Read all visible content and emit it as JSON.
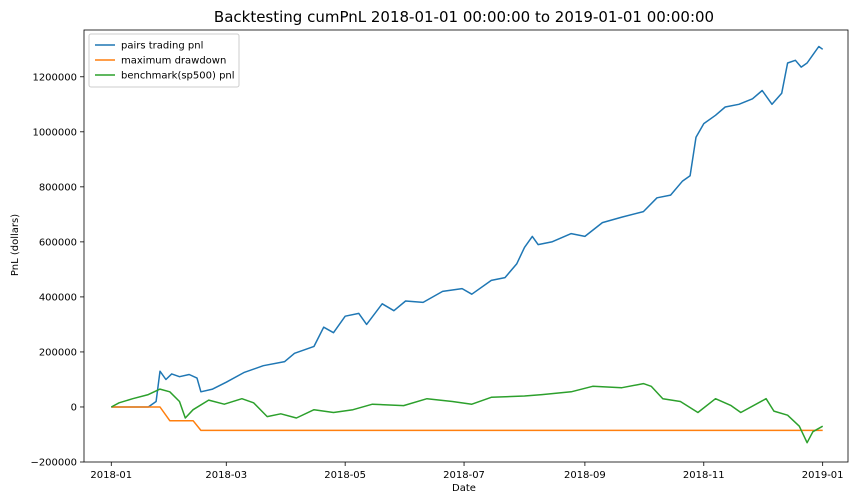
{
  "chart_data": {
    "type": "line",
    "title": "Backtesting cumPnL 2018-01-01 00:00:00 to 2019-01-01 00:00:00",
    "xlabel": "Date",
    "ylabel": "PnL (dollars)",
    "xlim": [
      "2017-12-18",
      "2019-01-14"
    ],
    "ylim": [
      -200000,
      1370000
    ],
    "grid": false,
    "legend_position": "top-left",
    "x_ticks": [
      {
        "value": "2018-01-01",
        "label": "2018-01"
      },
      {
        "value": "2018-03-01",
        "label": "2018-03"
      },
      {
        "value": "2018-05-01",
        "label": "2018-05"
      },
      {
        "value": "2018-07-01",
        "label": "2018-07"
      },
      {
        "value": "2018-09-01",
        "label": "2018-09"
      },
      {
        "value": "2018-11-01",
        "label": "2018-11"
      },
      {
        "value": "2019-01-01",
        "label": "2019-01"
      }
    ],
    "y_ticks": [
      {
        "value": -200000,
        "label": "−200000"
      },
      {
        "value": 0,
        "label": "0"
      },
      {
        "value": 200000,
        "label": "200000"
      },
      {
        "value": 400000,
        "label": "400000"
      },
      {
        "value": 600000,
        "label": "600000"
      },
      {
        "value": 800000,
        "label": "800000"
      },
      {
        "value": 1000000,
        "label": "1000000"
      },
      {
        "value": 1200000,
        "label": "1200000"
      }
    ],
    "series": [
      {
        "name": "pairs trading pnl",
        "color": "#1f77b4",
        "points": [
          [
            "2018-01-01",
            0
          ],
          [
            "2018-01-10",
            0
          ],
          [
            "2018-01-20",
            0
          ],
          [
            "2018-01-24",
            20000
          ],
          [
            "2018-01-26",
            130000
          ],
          [
            "2018-01-29",
            100000
          ],
          [
            "2018-02-01",
            120000
          ],
          [
            "2018-02-05",
            110000
          ],
          [
            "2018-02-10",
            118000
          ],
          [
            "2018-02-14",
            105000
          ],
          [
            "2018-02-16",
            55000
          ],
          [
            "2018-02-22",
            65000
          ],
          [
            "2018-03-01",
            90000
          ],
          [
            "2018-03-10",
            125000
          ],
          [
            "2018-03-20",
            150000
          ],
          [
            "2018-03-31",
            165000
          ],
          [
            "2018-04-05",
            195000
          ],
          [
            "2018-04-15",
            220000
          ],
          [
            "2018-04-20",
            290000
          ],
          [
            "2018-04-25",
            270000
          ],
          [
            "2018-05-01",
            330000
          ],
          [
            "2018-05-08",
            340000
          ],
          [
            "2018-05-12",
            300000
          ],
          [
            "2018-05-20",
            375000
          ],
          [
            "2018-05-26",
            350000
          ],
          [
            "2018-06-01",
            385000
          ],
          [
            "2018-06-10",
            380000
          ],
          [
            "2018-06-20",
            420000
          ],
          [
            "2018-06-30",
            430000
          ],
          [
            "2018-07-05",
            410000
          ],
          [
            "2018-07-15",
            460000
          ],
          [
            "2018-07-22",
            470000
          ],
          [
            "2018-07-28",
            520000
          ],
          [
            "2018-08-01",
            580000
          ],
          [
            "2018-08-05",
            620000
          ],
          [
            "2018-08-08",
            590000
          ],
          [
            "2018-08-15",
            600000
          ],
          [
            "2018-08-25",
            630000
          ],
          [
            "2018-09-01",
            620000
          ],
          [
            "2018-09-10",
            670000
          ],
          [
            "2018-09-20",
            690000
          ],
          [
            "2018-10-01",
            710000
          ],
          [
            "2018-10-08",
            760000
          ],
          [
            "2018-10-15",
            770000
          ],
          [
            "2018-10-21",
            820000
          ],
          [
            "2018-10-25",
            840000
          ],
          [
            "2018-10-28",
            980000
          ],
          [
            "2018-11-01",
            1030000
          ],
          [
            "2018-11-07",
            1060000
          ],
          [
            "2018-11-12",
            1090000
          ],
          [
            "2018-11-19",
            1100000
          ],
          [
            "2018-11-26",
            1120000
          ],
          [
            "2018-12-01",
            1150000
          ],
          [
            "2018-12-06",
            1100000
          ],
          [
            "2018-12-11",
            1140000
          ],
          [
            "2018-12-14",
            1250000
          ],
          [
            "2018-12-18",
            1260000
          ],
          [
            "2018-12-21",
            1235000
          ],
          [
            "2018-12-24",
            1250000
          ],
          [
            "2018-12-27",
            1280000
          ],
          [
            "2018-12-30",
            1310000
          ],
          [
            "2019-01-01",
            1300000
          ]
        ]
      },
      {
        "name": "maximum drawdown",
        "color": "#ff7f0e",
        "points": [
          [
            "2018-01-01",
            0
          ],
          [
            "2018-01-26",
            0
          ],
          [
            "2018-01-31",
            -50000
          ],
          [
            "2018-02-12",
            -50000
          ],
          [
            "2018-02-16",
            -85000
          ],
          [
            "2019-01-01",
            -85000
          ]
        ]
      },
      {
        "name": "benchmark(sp500) pnl",
        "color": "#2ca02c",
        "points": [
          [
            "2018-01-01",
            0
          ],
          [
            "2018-01-05",
            15000
          ],
          [
            "2018-01-12",
            30000
          ],
          [
            "2018-01-20",
            45000
          ],
          [
            "2018-01-26",
            65000
          ],
          [
            "2018-01-31",
            55000
          ],
          [
            "2018-02-05",
            20000
          ],
          [
            "2018-02-08",
            -40000
          ],
          [
            "2018-02-12",
            -10000
          ],
          [
            "2018-02-20",
            25000
          ],
          [
            "2018-02-28",
            10000
          ],
          [
            "2018-03-09",
            30000
          ],
          [
            "2018-03-15",
            15000
          ],
          [
            "2018-03-22",
            -35000
          ],
          [
            "2018-03-29",
            -25000
          ],
          [
            "2018-04-06",
            -40000
          ],
          [
            "2018-04-15",
            -10000
          ],
          [
            "2018-04-25",
            -20000
          ],
          [
            "2018-05-05",
            -10000
          ],
          [
            "2018-05-15",
            10000
          ],
          [
            "2018-05-31",
            5000
          ],
          [
            "2018-06-12",
            30000
          ],
          [
            "2018-06-25",
            20000
          ],
          [
            "2018-07-05",
            10000
          ],
          [
            "2018-07-15",
            35000
          ],
          [
            "2018-08-01",
            40000
          ],
          [
            "2018-08-10",
            45000
          ],
          [
            "2018-08-25",
            55000
          ],
          [
            "2018-09-05",
            75000
          ],
          [
            "2018-09-20",
            70000
          ],
          [
            "2018-10-01",
            85000
          ],
          [
            "2018-10-05",
            75000
          ],
          [
            "2018-10-11",
            30000
          ],
          [
            "2018-10-20",
            20000
          ],
          [
            "2018-10-29",
            -20000
          ],
          [
            "2018-11-07",
            30000
          ],
          [
            "2018-11-15",
            5000
          ],
          [
            "2018-11-20",
            -20000
          ],
          [
            "2018-12-03",
            30000
          ],
          [
            "2018-12-07",
            -15000
          ],
          [
            "2018-12-14",
            -30000
          ],
          [
            "2018-12-20",
            -70000
          ],
          [
            "2018-12-24",
            -130000
          ],
          [
            "2018-12-27",
            -90000
          ],
          [
            "2019-01-01",
            -70000
          ]
        ]
      }
    ]
  }
}
